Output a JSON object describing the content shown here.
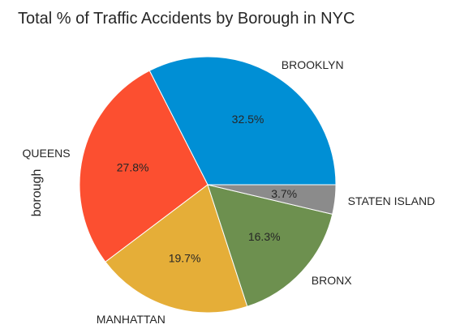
{
  "chart_data": {
    "type": "pie",
    "title": "Total % of Traffic Accidents by Borough in NYC",
    "ylabel": "borough",
    "start_angle_deg": 0,
    "direction": "counterclockwise",
    "slices": [
      {
        "label": "BROOKLYN",
        "value": 32.5,
        "pct_text": "32.5%",
        "color": "#008fd5"
      },
      {
        "label": "QUEENS",
        "value": 27.8,
        "pct_text": "27.8%",
        "color": "#fc4f30"
      },
      {
        "label": "MANHATTAN",
        "value": 19.7,
        "pct_text": "19.7%",
        "color": "#e5ae38"
      },
      {
        "label": "BRONX",
        "value": 16.3,
        "pct_text": "16.3%",
        "color": "#6d904f"
      },
      {
        "label": "STATEN ISLAND",
        "value": 3.7,
        "pct_text": "3.7%",
        "color": "#8b8b8b"
      }
    ]
  }
}
